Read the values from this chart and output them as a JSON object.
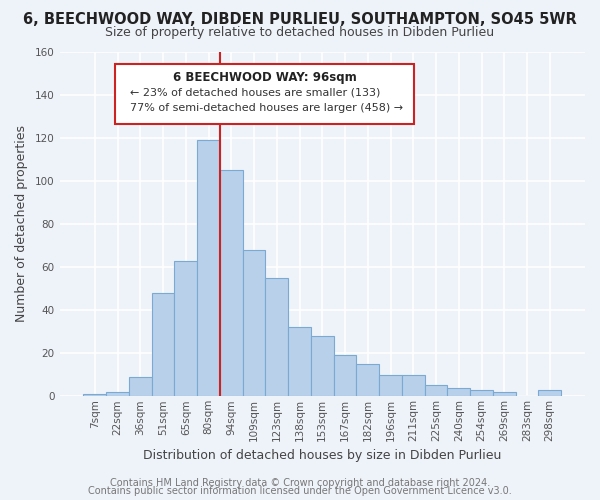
{
  "title": "6, BEECHWOOD WAY, DIBDEN PURLIEU, SOUTHAMPTON, SO45 5WR",
  "subtitle": "Size of property relative to detached houses in Dibden Purlieu",
  "xlabel": "Distribution of detached houses by size in Dibden Purlieu",
  "ylabel": "Number of detached properties",
  "bar_labels": [
    "7sqm",
    "22sqm",
    "36sqm",
    "51sqm",
    "65sqm",
    "80sqm",
    "94sqm",
    "109sqm",
    "123sqm",
    "138sqm",
    "153sqm",
    "167sqm",
    "182sqm",
    "196sqm",
    "211sqm",
    "225sqm",
    "240sqm",
    "254sqm",
    "269sqm",
    "283sqm",
    "298sqm"
  ],
  "bar_values": [
    1,
    2,
    9,
    48,
    63,
    119,
    105,
    68,
    55,
    32,
    28,
    19,
    15,
    10,
    10,
    5,
    4,
    3,
    2,
    0,
    3
  ],
  "bar_color": "#b8d0ea",
  "bar_edge_color": "#7aaad4",
  "highlight_bar_index": 5,
  "ylim": [
    0,
    160
  ],
  "yticks": [
    0,
    20,
    40,
    60,
    80,
    100,
    120,
    140,
    160
  ],
  "annotation_title": "6 BEECHWOOD WAY: 96sqm",
  "annotation_line1": "← 23% of detached houses are smaller (133)",
  "annotation_line2": "77% of semi-detached houses are larger (458) →",
  "footer1": "Contains HM Land Registry data © Crown copyright and database right 2024.",
  "footer2": "Contains public sector information licensed under the Open Government Licence v3.0.",
  "background_color": "#eef2f9",
  "grid_color": "#d8e0f0",
  "title_fontsize": 10.5,
  "subtitle_fontsize": 9,
  "axis_label_fontsize": 9,
  "tick_fontsize": 7.5,
  "footer_fontsize": 7
}
